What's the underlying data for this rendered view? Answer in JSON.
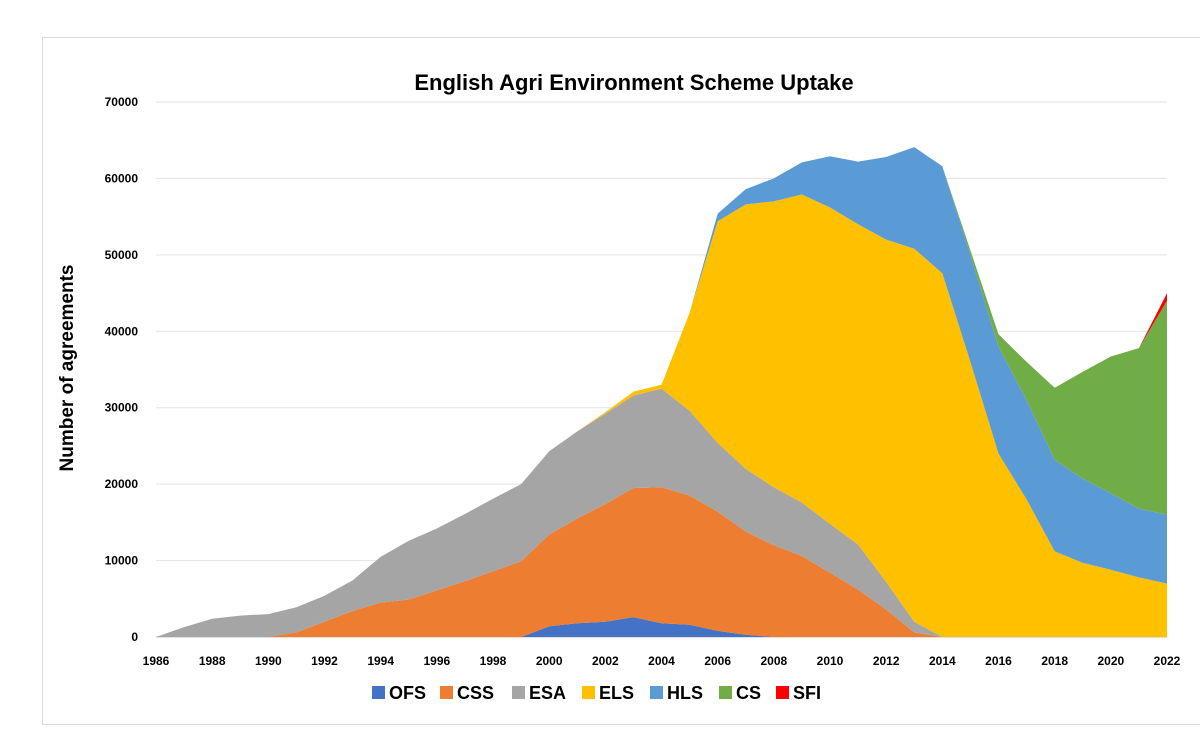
{
  "chart_data": {
    "type": "area",
    "stacked": true,
    "title": "English Agri Environment Scheme Uptake",
    "xlabel": "",
    "ylabel": "Number of agreements",
    "xlim": [
      1986,
      2022
    ],
    "ylim": [
      0,
      70000
    ],
    "x_ticks": [
      "1986",
      "1988",
      "1990",
      "1992",
      "1994",
      "1996",
      "1998",
      "2000",
      "2002",
      "2004",
      "2006",
      "2008",
      "2010",
      "2012",
      "2014",
      "2016",
      "2018",
      "2020",
      "2022"
    ],
    "y_ticks": [
      "0",
      "10000",
      "20000",
      "30000",
      "40000",
      "50000",
      "60000",
      "70000"
    ],
    "grid": "horizontal",
    "legend_position": "bottom",
    "x": [
      1986,
      1987,
      1988,
      1989,
      1990,
      1991,
      1992,
      1993,
      1994,
      1995,
      1996,
      1997,
      1998,
      1999,
      2000,
      2001,
      2002,
      2003,
      2004,
      2005,
      2006,
      2007,
      2008,
      2009,
      2010,
      2011,
      2012,
      2013,
      2014,
      2015,
      2016,
      2017,
      2018,
      2019,
      2020,
      2021,
      2022
    ],
    "series": [
      {
        "name": "OFS",
        "color": "#4472C4",
        "values": [
          0,
          0,
          0,
          0,
          0,
          0,
          0,
          0,
          0,
          0,
          0,
          0,
          0,
          0,
          1400,
          1800,
          2000,
          2600,
          1800,
          1600,
          800,
          300,
          0,
          0,
          0,
          0,
          0,
          0,
          0,
          0,
          0,
          0,
          0,
          0,
          0,
          0,
          0
        ]
      },
      {
        "name": "CSS",
        "color": "#ED7D31",
        "values": [
          0,
          0,
          0,
          0,
          0,
          600,
          2000,
          3400,
          4500,
          4900,
          6100,
          7300,
          8600,
          9900,
          12000,
          13700,
          15400,
          16900,
          17800,
          16900,
          15600,
          13500,
          12000,
          10600,
          8400,
          6200,
          3600,
          600,
          0,
          0,
          0,
          0,
          0,
          0,
          0,
          0,
          0
        ]
      },
      {
        "name": "ESA",
        "color": "#A5A5A5",
        "values": [
          0,
          1300,
          2400,
          2800,
          3000,
          3300,
          3400,
          4000,
          6000,
          7700,
          8100,
          8800,
          9500,
          10100,
          10900,
          11400,
          11800,
          12100,
          12900,
          11100,
          9000,
          8200,
          7600,
          7000,
          6400,
          5900,
          3600,
          1400,
          0,
          0,
          0,
          0,
          0,
          0,
          0,
          0,
          0
        ]
      },
      {
        "name": "ELS",
        "color": "#FFC000",
        "values": [
          0,
          0,
          0,
          0,
          0,
          0,
          0,
          0,
          0,
          0,
          0,
          0,
          0,
          0,
          0,
          0,
          200,
          500,
          500,
          12800,
          29000,
          34600,
          37400,
          40300,
          41400,
          41900,
          44800,
          48800,
          47600,
          36000,
          24000,
          18000,
          11200,
          9700,
          8800,
          7800,
          7000
        ]
      },
      {
        "name": "HLS",
        "color": "#5B9BD5",
        "values": [
          0,
          0,
          0,
          0,
          0,
          0,
          0,
          0,
          0,
          0,
          0,
          0,
          0,
          0,
          0,
          0,
          0,
          0,
          0,
          0,
          1000,
          2000,
          3000,
          4200,
          6700,
          8200,
          10800,
          13300,
          14000,
          14000,
          14000,
          13000,
          12000,
          11000,
          10000,
          9000,
          9000
        ]
      },
      {
        "name": "CS",
        "color": "#70AD47",
        "values": [
          0,
          0,
          0,
          0,
          0,
          0,
          0,
          0,
          0,
          0,
          0,
          0,
          0,
          0,
          0,
          0,
          0,
          0,
          0,
          0,
          0,
          0,
          0,
          0,
          0,
          0,
          0,
          0,
          0,
          600,
          1600,
          5000,
          9400,
          14000,
          17900,
          21000,
          28000
        ]
      },
      {
        "name": "SFI",
        "color": "#FF0000",
        "values": [
          0,
          0,
          0,
          0,
          0,
          0,
          0,
          0,
          0,
          0,
          0,
          0,
          0,
          0,
          0,
          0,
          0,
          0,
          0,
          0,
          0,
          0,
          0,
          0,
          0,
          0,
          0,
          0,
          0,
          0,
          0,
          0,
          0,
          0,
          0,
          0,
          1000
        ]
      }
    ]
  }
}
